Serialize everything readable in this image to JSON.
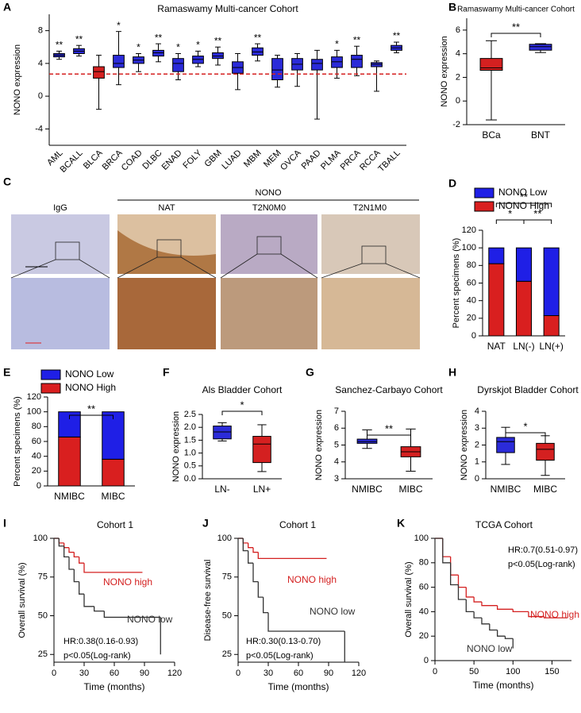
{
  "chart_data": [
    {
      "label": "A",
      "type": "box",
      "title": "Ramaswamy Multi-cancer Cohort",
      "ylabel": "NONO expression",
      "categories": [
        "AML",
        "BCALL",
        "BLCA",
        "BRCA",
        "COAD",
        "DLBC",
        "ENAD",
        "FOLY",
        "GBM",
        "LUAD",
        "MBM",
        "MEM",
        "OVCA",
        "PAAD",
        "PLMA",
        "PRCA",
        "RCCA",
        "TBALL"
      ],
      "whisker_low": [
        4.5,
        4.9,
        -1.6,
        1.4,
        3.0,
        4.2,
        2.0,
        3.6,
        3.8,
        0.8,
        4.3,
        1.1,
        1.2,
        -2.8,
        2.2,
        2.5,
        0.6,
        5.3
      ],
      "q1": [
        4.8,
        5.2,
        2.2,
        3.5,
        4.0,
        4.9,
        3.0,
        4.0,
        4.6,
        2.8,
        5.0,
        2.0,
        3.2,
        3.2,
        3.5,
        3.5,
        3.6,
        5.6
      ],
      "median": [
        5.0,
        5.5,
        3.0,
        4.0,
        4.4,
        5.3,
        4.0,
        4.5,
        4.9,
        3.5,
        5.4,
        3.2,
        3.9,
        4.0,
        4.2,
        4.5,
        3.9,
        5.9
      ],
      "q3": [
        5.2,
        5.8,
        3.6,
        5.0,
        4.8,
        5.6,
        4.6,
        4.9,
        5.3,
        4.2,
        5.9,
        4.6,
        4.6,
        4.5,
        4.8,
        5.0,
        4.1,
        6.2
      ],
      "whisker_high": [
        5.5,
        6.2,
        5.0,
        7.9,
        5.2,
        6.4,
        5.2,
        5.5,
        6.0,
        5.2,
        6.4,
        5.0,
        5.2,
        5.6,
        5.6,
        6.1,
        4.3,
        6.6
      ],
      "colors": [
        "#2b2bd9",
        "#2b2bd9",
        "#d42020",
        "#2b2bd9",
        "#2b2bd9",
        "#2b2bd9",
        "#2b2bd9",
        "#2b2bd9",
        "#2b2bd9",
        "#2b2bd9",
        "#2b2bd9",
        "#2b2bd9",
        "#2b2bd9",
        "#2b2bd9",
        "#2b2bd9",
        "#2b2bd9",
        "#2b2bd9",
        "#2b2bd9"
      ],
      "significance": [
        "**",
        "**",
        null,
        "*",
        "*",
        "**",
        "*",
        "*",
        "**",
        null,
        "**",
        null,
        null,
        null,
        "*",
        "**",
        null,
        "**"
      ],
      "reference_line": 2.7,
      "reference_color": "#d42020",
      "ylim": [
        -6,
        10
      ],
      "yticks": [
        -4,
        0,
        4,
        8
      ]
    },
    {
      "label": "B",
      "type": "box",
      "title": "Ramaswamy Multi-cancer Cohort",
      "ylabel": "NONO expression",
      "categories": [
        "BCa",
        "BNT"
      ],
      "whisker_low": [
        -1.6,
        4.1
      ],
      "q1": [
        2.6,
        4.3
      ],
      "median": [
        2.8,
        4.6
      ],
      "q3": [
        3.6,
        4.8
      ],
      "whisker_high": [
        5.1,
        4.85
      ],
      "colors": [
        "#d42020",
        "#2b2bd9"
      ],
      "comparisons": [
        {
          "pair": [
            "BCa",
            "BNT"
          ],
          "label": "**"
        }
      ],
      "ylim": [
        -2,
        7
      ],
      "yticks": [
        -2,
        0,
        2,
        4,
        6
      ]
    },
    {
      "label": "D",
      "type": "stacked_bar",
      "ylabel": "Percent specimens (%)",
      "categories": [
        "NAT",
        "LN(-)",
        "LN(+)"
      ],
      "series": [
        {
          "name": "NONO High",
          "color": "#d91f1f",
          "values": [
            82,
            62,
            23
          ]
        },
        {
          "name": "NONO Low",
          "color": "#1f1fe6",
          "values": [
            18,
            38,
            77
          ]
        }
      ],
      "comparisons": [
        {
          "pair": [
            "NAT",
            "LN(-)"
          ],
          "label": "*"
        },
        {
          "pair": [
            "LN(-)",
            "LN(+)"
          ],
          "label": "**"
        },
        {
          "pair": [
            "NAT",
            "LN(+)"
          ],
          "label": "**"
        }
      ],
      "ylim": [
        0,
        120
      ],
      "yticks": [
        0,
        20,
        40,
        60,
        80,
        100,
        120
      ]
    },
    {
      "label": "E",
      "type": "stacked_bar",
      "ylabel": "Percent specimens (%)",
      "categories": [
        "NMIBC",
        "MIBC"
      ],
      "series": [
        {
          "name": "NONO High",
          "color": "#d91f1f",
          "values": [
            66,
            36
          ]
        },
        {
          "name": "NONO Low",
          "color": "#1f1fe6",
          "values": [
            34,
            64
          ]
        }
      ],
      "comparisons": [
        {
          "pair": [
            "NMIBC",
            "MIBC"
          ],
          "label": "**"
        }
      ],
      "ylim": [
        0,
        120
      ],
      "yticks": [
        0,
        20,
        40,
        60,
        80,
        100,
        120
      ]
    },
    {
      "label": "F",
      "type": "box",
      "title": "Als Bladder Cohort",
      "ylabel": "NONO expression",
      "categories": [
        "LN-",
        "LN+"
      ],
      "whisker_low": [
        1.47,
        0.28
      ],
      "q1": [
        1.55,
        0.63
      ],
      "median": [
        1.82,
        1.35
      ],
      "q3": [
        2.05,
        1.65
      ],
      "whisker_high": [
        2.18,
        2.1
      ],
      "colors": [
        "#2b2bd9",
        "#d42020"
      ],
      "comparisons": [
        {
          "pair": [
            "LN-",
            "LN+"
          ],
          "label": "*"
        }
      ],
      "ylim": [
        0,
        2.5
      ],
      "yticks": [
        {
          "value": 0,
          "label": "0.0"
        },
        0.5,
        {
          "value": 1,
          "label": "1.0"
        },
        1.5,
        {
          "value": 2,
          "label": "2.0"
        },
        2.5
      ]
    },
    {
      "label": "G",
      "type": "box",
      "title": "Sanchez-Carbayo Cohort",
      "ylabel": "NONO expression",
      "categories": [
        "NMIBC",
        "MIBC"
      ],
      "whisker_low": [
        4.8,
        3.45
      ],
      "q1": [
        5.1,
        4.3
      ],
      "median": [
        5.2,
        4.6
      ],
      "q3": [
        5.35,
        4.9
      ],
      "whisker_high": [
        5.9,
        5.95
      ],
      "colors": [
        "#2b2bd9",
        "#d42020"
      ],
      "comparisons": [
        {
          "pair": [
            "NMIBC",
            "MIBC"
          ],
          "label": "**"
        }
      ],
      "ylim": [
        3,
        7
      ],
      "yticks": [
        3,
        4,
        5,
        6,
        7
      ]
    },
    {
      "label": "H",
      "type": "box",
      "title": "Dyrskjot Bladder Cohort",
      "ylabel": "NONO expression",
      "categories": [
        "NMIBC",
        "MIBC"
      ],
      "whisker_low": [
        0.85,
        0.2
      ],
      "q1": [
        1.55,
        1.1
      ],
      "median": [
        2.2,
        1.75
      ],
      "q3": [
        2.45,
        2.1
      ],
      "whisker_high": [
        3.05,
        2.55
      ],
      "colors": [
        "#2b2bd9",
        "#d42020"
      ],
      "comparisons": [
        {
          "pair": [
            "NMIBC",
            "MIBC"
          ],
          "label": "*"
        }
      ],
      "ylim": [
        0,
        4
      ],
      "yticks": [
        0,
        1,
        2,
        3,
        4
      ]
    },
    {
      "label": "I",
      "type": "survival",
      "title": "Cohort 1",
      "ylabel": "Overall survival (%)",
      "xlabel": "Time (months)",
      "series": [
        {
          "name": "NONO high",
          "color": "#d42020",
          "x": [
            0,
            5,
            10,
            15,
            20,
            25,
            30,
            88
          ],
          "values": [
            100,
            97,
            94,
            91,
            88,
            84,
            78,
            78
          ]
        },
        {
          "name": "NONO low",
          "color": "#333333",
          "x": [
            0,
            5,
            10,
            15,
            20,
            25,
            30,
            40,
            50,
            105,
            106
          ],
          "values": [
            100,
            95,
            88,
            80,
            72,
            64,
            56,
            53,
            49,
            49,
            25
          ]
        }
      ],
      "hr": "HR:0.38(0.16-0.93)",
      "p_text": "p<0.05(Log-rank)",
      "xlim": [
        0,
        120
      ],
      "xticks": [
        0,
        30,
        60,
        90,
        120
      ],
      "ylim": [
        20,
        100
      ],
      "yticks": [
        25,
        50,
        75,
        100
      ]
    },
    {
      "label": "J",
      "type": "survival",
      "title": "Cohort 1",
      "ylabel": "Disease-free survival",
      "xlabel": "Time (months)",
      "series": [
        {
          "name": "NONO high",
          "color": "#d42020",
          "x": [
            0,
            5,
            10,
            15,
            20,
            88
          ],
          "values": [
            100,
            97,
            94,
            91,
            87,
            87
          ]
        },
        {
          "name": "NONO low",
          "color": "#333333",
          "x": [
            0,
            5,
            10,
            15,
            20,
            25,
            30,
            105,
            106
          ],
          "values": [
            100,
            92,
            84,
            72,
            62,
            52,
            40,
            40,
            20
          ]
        }
      ],
      "hr": "HR:0.30(0.13-0.70)",
      "p_text": "p<0.05(Log-rank)",
      "xlim": [
        0,
        120
      ],
      "xticks": [
        0,
        30,
        60,
        90,
        120
      ],
      "ylim": [
        20,
        100
      ],
      "yticks": [
        25,
        50,
        75,
        100
      ]
    },
    {
      "label": "K",
      "type": "survival",
      "title": "TCGA Cohort",
      "ylabel": "Overall survival (%)",
      "xlabel": "Time (months)",
      "series": [
        {
          "name": "NONO high",
          "color": "#d42020",
          "x": [
            0,
            10,
            20,
            30,
            40,
            50,
            60,
            80,
            100,
            120,
            140,
            170
          ],
          "values": [
            100,
            85,
            70,
            60,
            52,
            48,
            45,
            42,
            40,
            36,
            35,
            35
          ]
        },
        {
          "name": "NONO low",
          "color": "#333333",
          "x": [
            0,
            10,
            20,
            30,
            40,
            50,
            60,
            70,
            80,
            90,
            100
          ],
          "values": [
            100,
            80,
            62,
            50,
            40,
            35,
            30,
            25,
            20,
            18,
            10
          ]
        }
      ],
      "hr": "HR:0.7(0.51-0.97)",
      "p_text": "p<0.05(Log-rank)",
      "xlim": [
        0,
        175
      ],
      "xticks": [
        0,
        50,
        100,
        150
      ],
      "ylim": [
        0,
        100
      ],
      "yticks": [
        0,
        20,
        40,
        60,
        80,
        100
      ]
    }
  ],
  "image_panel": {
    "label": "C",
    "group": "NONO",
    "columns": [
      "IgG",
      "NAT",
      "T2N0M0",
      "T2N1M0"
    ]
  }
}
